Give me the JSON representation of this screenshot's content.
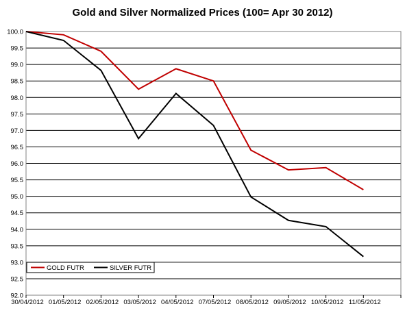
{
  "chart_data": {
    "type": "line",
    "title": "Gold and Silver Normalized Prices  (100= Apr 30 2012)",
    "categories": [
      "30/04/2012",
      "01/05/2012",
      "02/05/2012",
      "03/05/2012",
      "04/05/2012",
      "07/05/2012",
      "08/05/2012",
      "09/05/2012",
      "10/05/2012",
      "11/05/2012"
    ],
    "ylim": [
      92.0,
      100.0
    ],
    "yticks": [
      "92.0",
      "92.5",
      "93.0",
      "93.5",
      "94.0",
      "94.5",
      "95.0",
      "95.5",
      "96.0",
      "96.5",
      "97.0",
      "97.5",
      "98.0",
      "98.5",
      "99.0",
      "99.5",
      "100.0"
    ],
    "grid": true,
    "legend_position": "bottom-left",
    "series": [
      {
        "name": "GOLD  FUTR",
        "color": "#c00000",
        "values": [
          100.0,
          99.9,
          99.4,
          98.25,
          98.87,
          98.5,
          96.4,
          95.8,
          95.87,
          95.2
        ]
      },
      {
        "name": "SILVER  FUTR",
        "color": "#000000",
        "values": [
          100.0,
          99.73,
          98.82,
          96.75,
          98.12,
          97.15,
          94.98,
          94.27,
          94.08,
          93.17
        ]
      }
    ]
  }
}
